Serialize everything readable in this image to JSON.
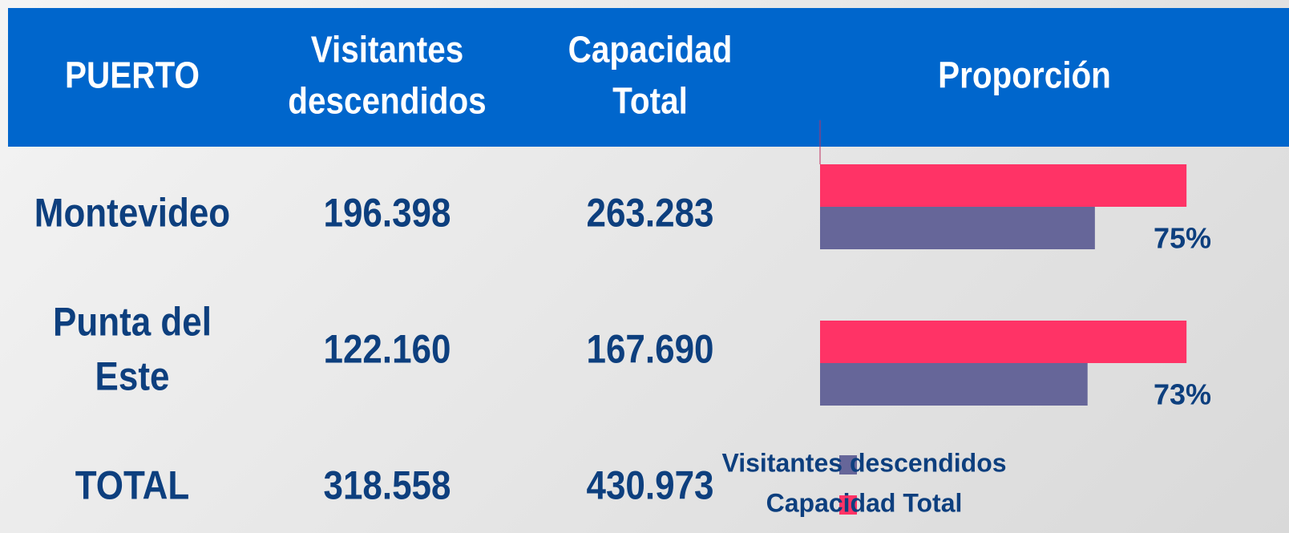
{
  "table": {
    "header": [
      "PUERTO",
      "Visitantes descendidos",
      "Capacidad Total",
      "Proporción"
    ],
    "rows": [
      [
        "Montevideo",
        "196.398",
        "263.283"
      ],
      [
        "Punta del Este",
        "122.160",
        "167.690"
      ],
      [
        "TOTAL",
        "318.558",
        "430.973"
      ]
    ]
  },
  "chart_data": {
    "type": "barh",
    "categories": [
      "Montevideo",
      "Punta del Este"
    ],
    "series": [
      {
        "name": "Capacidad Total",
        "color": "#ff3366",
        "values": [
          100,
          100
        ]
      },
      {
        "name": "Visitantes descendidos",
        "color": "#666699",
        "values": [
          75,
          73
        ],
        "value_labels": [
          "75%",
          "73%"
        ]
      }
    ],
    "xlim": [
      0,
      105
    ],
    "legend": "bottom"
  }
}
